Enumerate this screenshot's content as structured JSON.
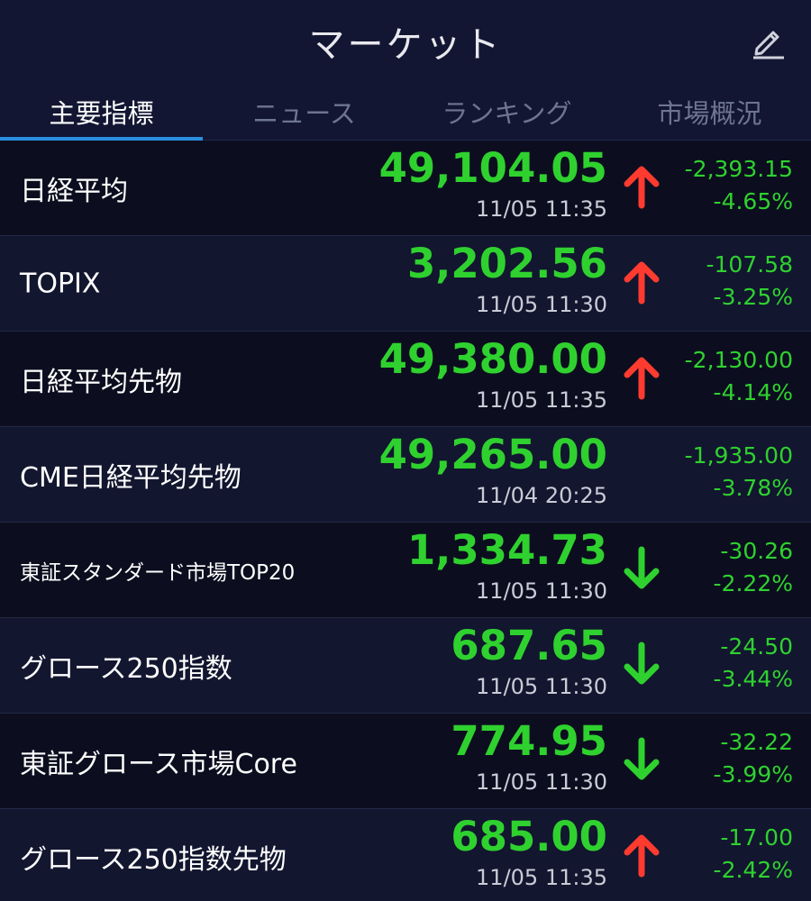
{
  "header": {
    "title": "マーケット",
    "edit_icon": "pencil-icon"
  },
  "tabs": [
    {
      "label": "主要指標",
      "active": true
    },
    {
      "label": "ニュース",
      "active": false
    },
    {
      "label": "ランキング",
      "active": false
    },
    {
      "label": "市場概況",
      "active": false
    }
  ],
  "colors": {
    "up_value": "#2fd12f",
    "arrow_up": "#ff3b30",
    "arrow_down": "#2fd12f",
    "tab_accent": "#2b8fe0"
  },
  "rows": [
    {
      "name": "日経平均",
      "price": "49,104.05",
      "time": "11/05 11:35",
      "arrow": "up",
      "change": "-2,393.15",
      "pct": "-4.65%"
    },
    {
      "name": "TOPIX",
      "price": "3,202.56",
      "time": "11/05 11:30",
      "arrow": "up",
      "change": "-107.58",
      "pct": "-3.25%"
    },
    {
      "name": "日経平均先物",
      "price": "49,380.00",
      "time": "11/05 11:35",
      "arrow": "up",
      "change": "-2,130.00",
      "pct": "-4.14%"
    },
    {
      "name": "CME日経平均先物",
      "price": "49,265.00",
      "time": "11/04 20:25",
      "arrow": "none",
      "change": "-1,935.00",
      "pct": "-3.78%"
    },
    {
      "name": "東証スタンダード市場TOP20",
      "price": "1,334.73",
      "time": "11/05 11:30",
      "arrow": "down",
      "change": "-30.26",
      "pct": "-2.22%"
    },
    {
      "name": "グロース250指数",
      "price": "687.65",
      "time": "11/05 11:30",
      "arrow": "down",
      "change": "-24.50",
      "pct": "-3.44%"
    },
    {
      "name": "東証グロース市場Core",
      "price": "774.95",
      "time": "11/05 11:30",
      "arrow": "down",
      "change": "-32.22",
      "pct": "-3.99%"
    },
    {
      "name": "グロース250指数先物",
      "price": "685.00",
      "time": "11/05 11:35",
      "arrow": "up",
      "change": "-17.00",
      "pct": "-2.42%"
    }
  ]
}
